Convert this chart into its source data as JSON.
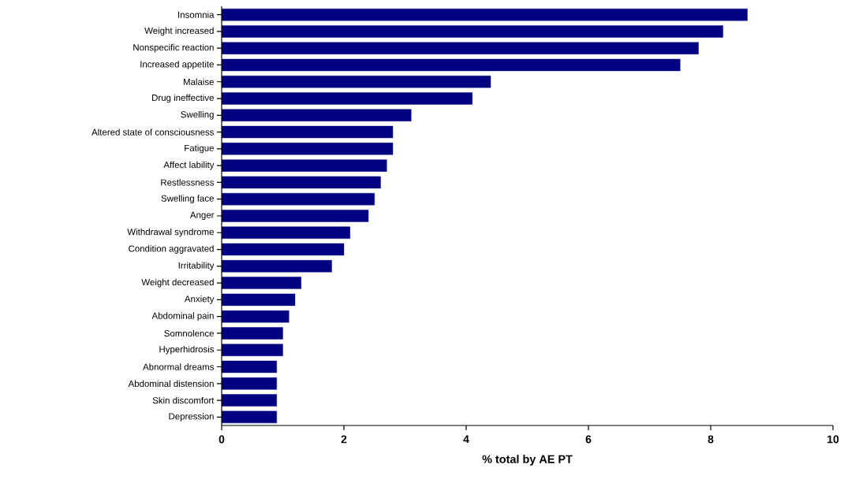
{
  "chart_data": {
    "type": "bar",
    "orientation": "horizontal",
    "xlabel": "% total by AE PT",
    "categories": [
      "Insomnia",
      "Weight increased",
      "Nonspecific reaction",
      "Increased appetite",
      "Malaise",
      "Drug ineffective",
      "Swelling",
      "Altered state of consciousness",
      "Fatigue",
      "Affect lability",
      "Restlessness",
      "Swelling face",
      "Anger",
      "Withdrawal syndrome",
      "Condition aggravated",
      "Irritability",
      "Weight decreased",
      "Anxiety",
      "Abdominal pain",
      "Somnolence",
      "Hyperhidrosis",
      "Abnormal dreams",
      "Abdominal distension",
      "Skin discomfort",
      "Depression"
    ],
    "values": [
      8.6,
      8.2,
      7.8,
      7.5,
      4.4,
      4.1,
      3.1,
      2.8,
      2.8,
      2.7,
      2.6,
      2.5,
      2.4,
      2.1,
      2.0,
      1.8,
      1.3,
      1.2,
      1.1,
      1.0,
      1.0,
      0.9,
      0.9,
      0.9,
      0.9
    ],
    "color": "#000080",
    "xlim": [
      0,
      10
    ],
    "xticks": [
      0,
      2,
      4,
      6,
      8,
      10
    ]
  }
}
